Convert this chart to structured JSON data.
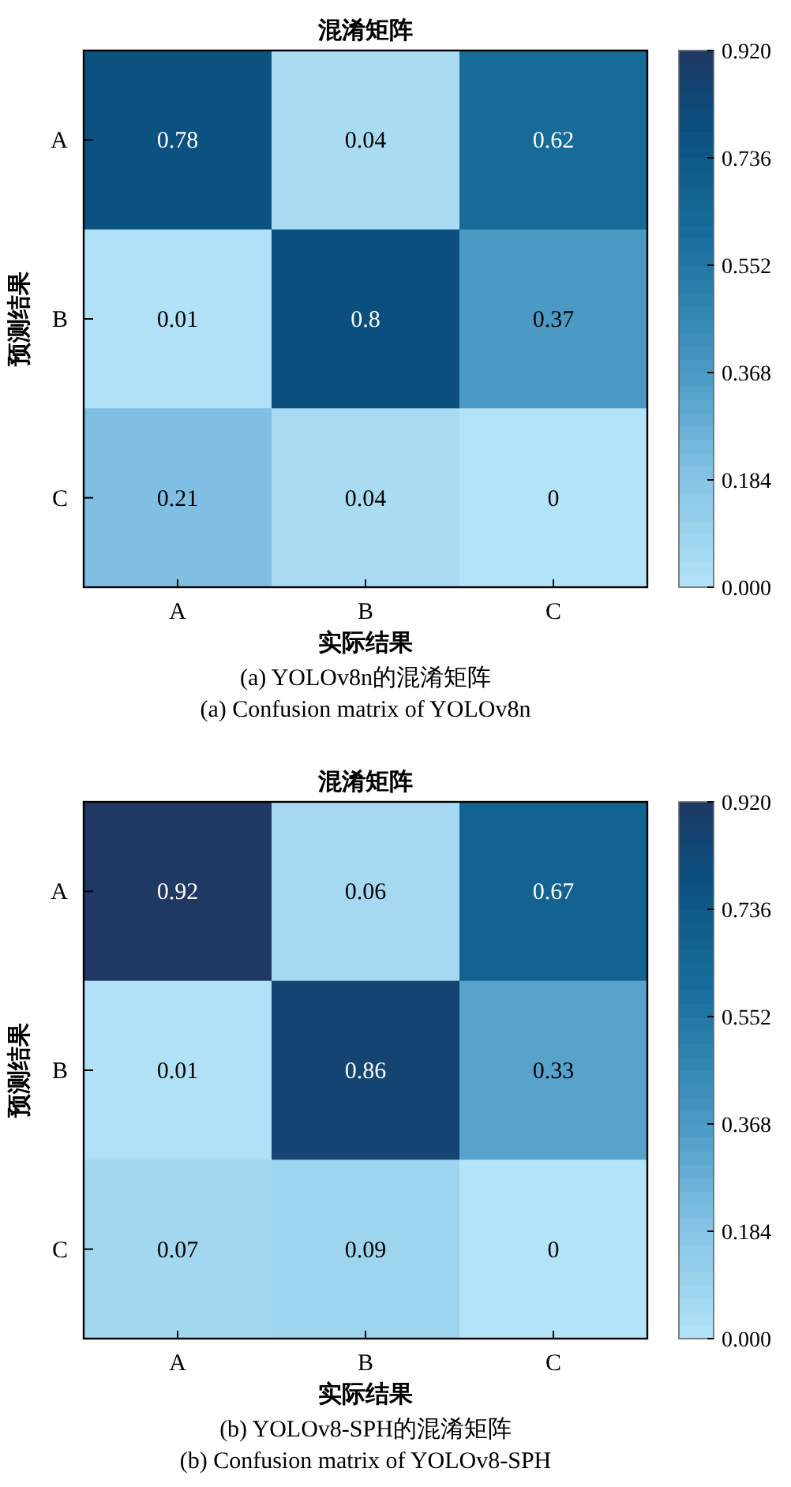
{
  "chart_data": [
    {
      "type": "heatmap",
      "title": "混淆矩阵",
      "xlabel": "实际结果",
      "ylabel": "预测结果",
      "categories": [
        "A",
        "B",
        "C"
      ],
      "y_categories": [
        "A",
        "B",
        "C"
      ],
      "cells": [
        [
          0.78,
          0.04,
          0.62
        ],
        [
          0.01,
          0.8,
          0.37
        ],
        [
          0.21,
          0.04,
          0
        ]
      ],
      "data_labels": true,
      "clim": [
        0,
        0.92
      ],
      "cticks": [
        {
          "value": 0,
          "label": "0.000"
        },
        {
          "value": 0.184,
          "label": "0.184"
        },
        {
          "value": 0.368,
          "label": "0.368"
        },
        {
          "value": 0.552,
          "label": "0.552"
        },
        {
          "value": 0.736,
          "label": "0.736"
        },
        {
          "value": 0.92,
          "label": "0.920"
        }
      ],
      "annotations": [
        "(a) YOLOv8n的混淆矩阵",
        "(a) Confusion matrix of YOLOv8n"
      ]
    },
    {
      "type": "heatmap",
      "title": "混淆矩阵",
      "xlabel": "实际结果",
      "ylabel": "预测结果",
      "categories": [
        "A",
        "B",
        "C"
      ],
      "y_categories": [
        "A",
        "B",
        "C"
      ],
      "cells": [
        [
          0.92,
          0.06,
          0.67
        ],
        [
          0.01,
          0.86,
          0.33
        ],
        [
          0.07,
          0.09,
          0
        ]
      ],
      "data_labels": true,
      "clim": [
        0,
        0.92
      ],
      "cticks": [
        {
          "value": 0,
          "label": "0.000"
        },
        {
          "value": 0.184,
          "label": "0.184"
        },
        {
          "value": 0.368,
          "label": "0.368"
        },
        {
          "value": 0.552,
          "label": "0.552"
        },
        {
          "value": 0.736,
          "label": "0.736"
        },
        {
          "value": 0.92,
          "label": "0.920"
        }
      ],
      "annotations": [
        "(b) YOLOv8-SPH的混淆矩阵",
        "(b) Confusion matrix of YOLOv8-SPH"
      ]
    }
  ]
}
